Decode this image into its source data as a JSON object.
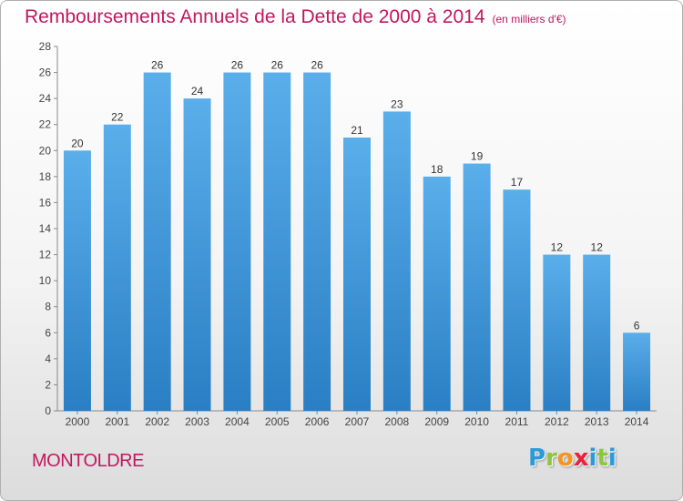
{
  "title": "Remboursements Annuels de la Dette de 2000 à 2014",
  "unit_label": "(en milliers d'€)",
  "commune": "MONTOLDRE",
  "logo": {
    "letters": [
      "P",
      "r",
      "o",
      "x",
      "i",
      "t",
      "i"
    ],
    "colors": [
      "#2a9bd8",
      "#8cc63f",
      "#f7941d",
      "#e8203c",
      "#2a9bd8",
      "#8cc63f",
      "#2a9bd8"
    ]
  },
  "chart_data": {
    "type": "bar",
    "categories": [
      "2000",
      "2001",
      "2002",
      "2003",
      "2004",
      "2005",
      "2006",
      "2007",
      "2008",
      "2009",
      "2010",
      "2011",
      "2012",
      "2013",
      "2014"
    ],
    "values": [
      20,
      22,
      26,
      24,
      26,
      26,
      26,
      21,
      23,
      18,
      19,
      17,
      12,
      12,
      6
    ],
    "ylim": [
      0,
      28
    ],
    "yticks": [
      0,
      2,
      4,
      6,
      8,
      10,
      12,
      14,
      16,
      18,
      20,
      22,
      24,
      26,
      28
    ],
    "grid": false,
    "bar_color_top": "#5aaeea",
    "bar_color_bottom": "#2a7fc4"
  }
}
